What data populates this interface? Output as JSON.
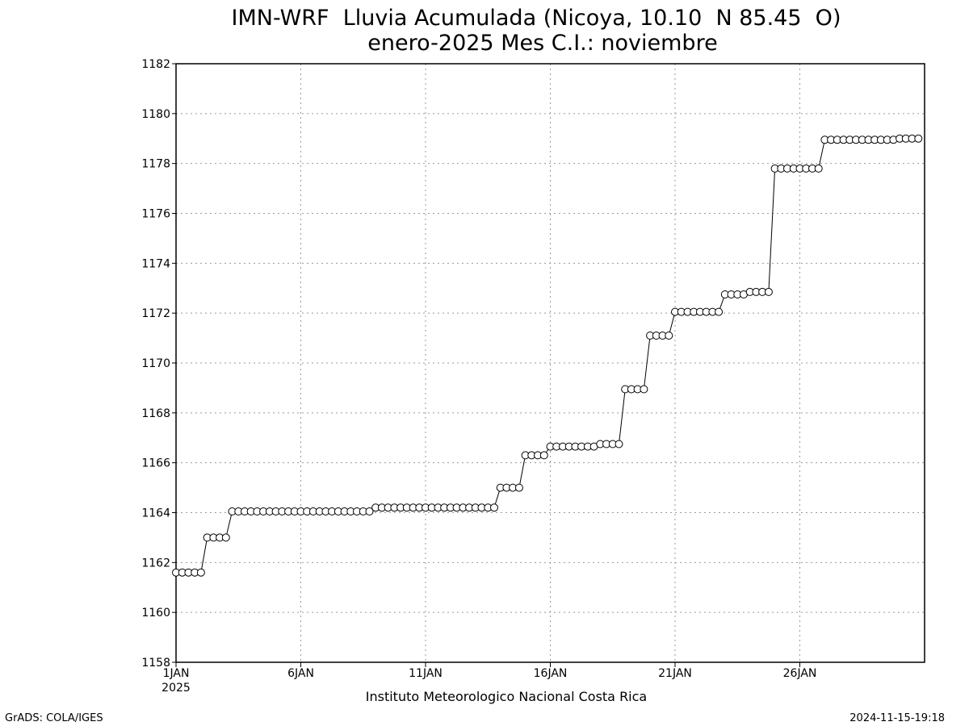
{
  "chart_data": {
    "type": "line",
    "title": "IMN-WRF  Lluvia Acumulada (Nicoya, 10.10  N 85.45  O)",
    "subtitle": "enero-2025 Mes C.I.: noviembre",
    "x_tick_labels": [
      "1JAN",
      "6JAN",
      "11JAN",
      "16JAN",
      "21JAN",
      "26JAN"
    ],
    "x_tick_sublabel": "2025",
    "x_range_days": [
      1,
      31
    ],
    "ylim": [
      1158,
      1182
    ],
    "y_ticks": [
      1158,
      1160,
      1162,
      1164,
      1166,
      1168,
      1170,
      1172,
      1174,
      1176,
      1178,
      1180,
      1182
    ],
    "grid": true,
    "marker": "open-circle",
    "series": [
      {
        "x_days_step": 0.25,
        "x_start_day": 1,
        "values": [
          1161.6,
          1161.6,
          1161.6,
          1161.6,
          1161.6,
          1163.0,
          1163.0,
          1163.0,
          1163.0,
          1164.05,
          1164.05,
          1164.05,
          1164.05,
          1164.05,
          1164.05,
          1164.05,
          1164.05,
          1164.05,
          1164.05,
          1164.05,
          1164.05,
          1164.05,
          1164.05,
          1164.05,
          1164.05,
          1164.05,
          1164.05,
          1164.05,
          1164.05,
          1164.05,
          1164.05,
          1164.05,
          1164.2,
          1164.2,
          1164.2,
          1164.2,
          1164.2,
          1164.2,
          1164.2,
          1164.2,
          1164.2,
          1164.2,
          1164.2,
          1164.2,
          1164.2,
          1164.2,
          1164.2,
          1164.2,
          1164.2,
          1164.2,
          1164.2,
          1164.2,
          1165.0,
          1165.0,
          1165.0,
          1165.0,
          1166.3,
          1166.3,
          1166.3,
          1166.3,
          1166.65,
          1166.65,
          1166.65,
          1166.65,
          1166.65,
          1166.65,
          1166.65,
          1166.65,
          1166.75,
          1166.75,
          1166.75,
          1166.75,
          1168.95,
          1168.95,
          1168.95,
          1168.95,
          1171.1,
          1171.1,
          1171.1,
          1171.1,
          1172.05,
          1172.05,
          1172.05,
          1172.05,
          1172.05,
          1172.05,
          1172.05,
          1172.05,
          1172.75,
          1172.75,
          1172.75,
          1172.75,
          1172.85,
          1172.85,
          1172.85,
          1172.85,
          1177.8,
          1177.8,
          1177.8,
          1177.8,
          1177.8,
          1177.8,
          1177.8,
          1177.8,
          1178.95,
          1178.95,
          1178.95,
          1178.95,
          1178.95,
          1178.95,
          1178.95,
          1178.95,
          1178.95,
          1178.95,
          1178.95,
          1178.95,
          1179.0,
          1179.0,
          1179.0,
          1179.0
        ]
      }
    ]
  },
  "footer": {
    "institution": "Instituto Meteorologico Nacional Costa Rica",
    "credit": "GrADS: COLA/IGES",
    "timestamp": "2024-11-15-19:18"
  }
}
